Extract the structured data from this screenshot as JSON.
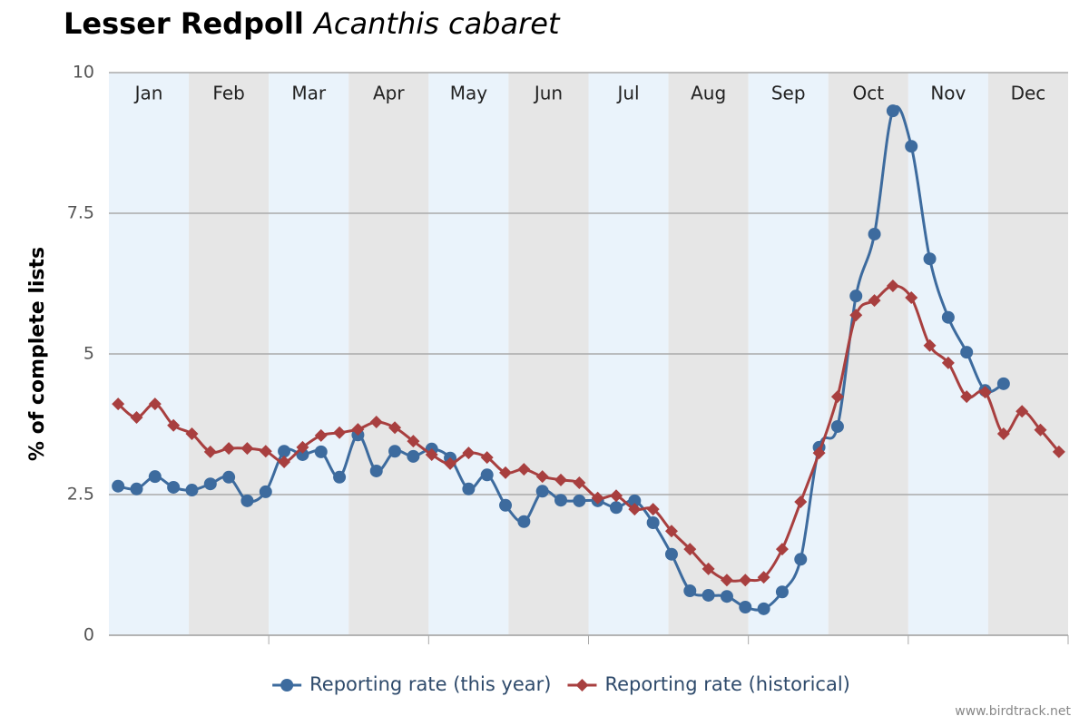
{
  "chart_data": {
    "type": "line",
    "title": "Lesser Redpoll",
    "title_scientific": "Acanthis cabaret",
    "y_label": "% of complete lists",
    "months": [
      "Jan",
      "Feb",
      "Mar",
      "Apr",
      "May",
      "Jun",
      "Jul",
      "Aug",
      "Sep",
      "Oct",
      "Nov",
      "Dec"
    ],
    "categories": [
      null,
      null,
      null,
      null,
      null,
      null,
      null,
      null,
      null,
      null,
      null,
      null,
      null,
      null,
      null,
      null,
      null,
      null,
      null,
      null,
      null,
      null,
      null,
      null,
      null,
      null,
      null,
      null,
      null,
      null,
      null,
      null,
      null,
      null,
      null,
      null,
      null,
      null,
      null,
      null,
      null,
      null,
      null,
      null,
      null,
      null,
      null,
      null,
      null,
      null,
      null,
      null
    ],
    "ylim": [
      0,
      10
    ],
    "yticks": [
      0,
      2.5,
      5,
      7.5,
      10
    ],
    "grid": true,
    "series": [
      {
        "name": "Reporting rate (this year)",
        "color": "#3d6b9e",
        "marker": "circle",
        "values": [
          2.65,
          2.6,
          2.82,
          2.63,
          2.58,
          2.69,
          2.81,
          2.39,
          2.55,
          3.27,
          3.21,
          3.26,
          2.81,
          3.56,
          2.92,
          3.27,
          3.18,
          3.31,
          3.15,
          2.6,
          2.85,
          2.31,
          2.02,
          2.56,
          2.4,
          2.39,
          2.39,
          2.27,
          2.39,
          2.0,
          1.44,
          0.79,
          0.71,
          0.69,
          0.5,
          0.47,
          0.77,
          1.35,
          3.34,
          3.71,
          6.03,
          7.13,
          9.32,
          8.69,
          6.69,
          5.65,
          5.03,
          4.35,
          4.47,
          null,
          null,
          null
        ]
      },
      {
        "name": "Reporting rate (historical)",
        "color": "#a83f3f",
        "marker": "diamond",
        "values": [
          4.11,
          3.87,
          4.11,
          3.73,
          3.58,
          3.26,
          3.32,
          3.32,
          3.27,
          3.08,
          3.34,
          3.55,
          3.6,
          3.66,
          3.79,
          3.69,
          3.45,
          3.21,
          3.05,
          3.24,
          3.16,
          2.89,
          2.95,
          2.82,
          2.76,
          2.71,
          2.44,
          2.48,
          2.24,
          2.24,
          1.85,
          1.53,
          1.18,
          0.98,
          0.98,
          1.03,
          1.53,
          2.37,
          3.24,
          4.24,
          5.69,
          5.95,
          6.21,
          6.0,
          5.15,
          4.84,
          4.24,
          4.32,
          3.58,
          3.98,
          3.65,
          3.26
        ]
      }
    ],
    "legend": "bottom",
    "credit": "www.birdtrack.net"
  }
}
